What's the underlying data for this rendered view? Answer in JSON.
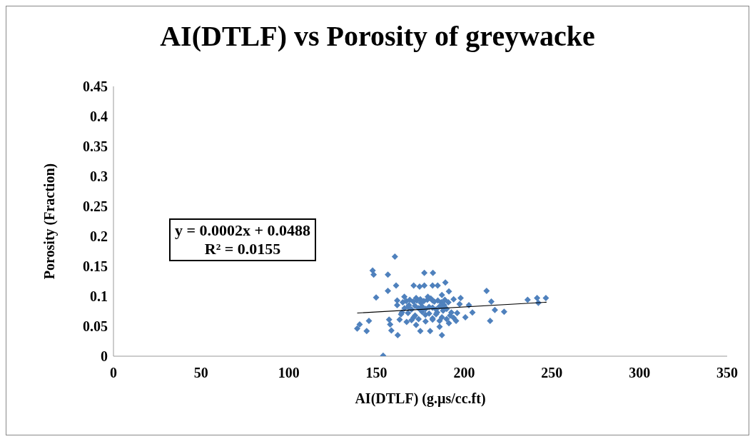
{
  "chart_data": {
    "type": "scatter",
    "title": "AI(DTLF) vs Porosity of greywacke",
    "xlabel": "AI(DTLF) (g.µs/cc.ft)",
    "ylabel": "Porosity (Fraction)",
    "xlim": [
      0,
      350
    ],
    "xticks": [
      0,
      50,
      100,
      150,
      200,
      250,
      300,
      350
    ],
    "ylim": [
      0,
      0.45
    ],
    "yticks": [
      0,
      0.05,
      0.1,
      0.15,
      0.2,
      0.25,
      0.3,
      0.35,
      0.4,
      0.45
    ],
    "grid": false,
    "legend": false,
    "marker": "diamond",
    "annotations": [
      "y = 0.0002x + 0.0488",
      "R² = 0.0155"
    ],
    "series": [
      {
        "color": "#4f81bd",
        "x": [
          160.5,
          147.8,
          148.4,
          156.5,
          177.3,
          182.2,
          189.3,
          171.2,
          174.6,
          177.3,
          161.2,
          156.5,
          182,
          184.9,
          212.8,
          149.8,
          198,
          215.5,
          236.2,
          241.6,
          242.3,
          246.6,
          217.5,
          222.8,
          214.8,
          145.7,
          140.4,
          139,
          144.4,
          158.5,
          162.1,
          175,
          180.6,
          187.3,
          153.8,
          161.8,
          165.9,
          172.6,
          179.3,
          187.3,
          191.3,
          194,
          197.4,
          202.7,
          204.7,
          200.7,
          195.4,
          191.3,
          186,
          172.6,
          167.2,
          163.2,
          157.2,
          157.8,
          164.5,
          168.5,
          175.3,
          182,
          188.6,
          184.6,
          177.9,
          171.2,
          192.7,
          175.3,
          182,
          187.3,
          161.8,
          165,
          167,
          169,
          171,
          173,
          175,
          177,
          179,
          181,
          183,
          185,
          187,
          189,
          191,
          166,
          168,
          170,
          172,
          174,
          176,
          178,
          180,
          182,
          184,
          186,
          188,
          190,
          164,
          168,
          172,
          176,
          180,
          184,
          188,
          192,
          196,
          170,
          174,
          178,
          182,
          186,
          190,
          194
        ],
        "values": [
          0.166,
          0.143,
          0.136,
          0.136,
          0.139,
          0.139,
          0.123,
          0.118,
          0.116,
          0.118,
          0.118,
          0.109,
          0.118,
          0.118,
          0.109,
          0.098,
          0.097,
          0.091,
          0.094,
          0.097,
          0.089,
          0.097,
          0.077,
          0.074,
          0.059,
          0.059,
          0.053,
          0.046,
          0.042,
          0.043,
          0.035,
          0.042,
          0.042,
          0.035,
          0.001,
          0.093,
          0.099,
          0.097,
          0.099,
          0.102,
          0.108,
          0.095,
          0.087,
          0.085,
          0.073,
          0.065,
          0.059,
          0.055,
          0.049,
          0.052,
          0.057,
          0.061,
          0.061,
          0.053,
          0.073,
          0.085,
          0.089,
          0.093,
          0.085,
          0.073,
          0.069,
          0.065,
          0.073,
          0.077,
          0.061,
          0.065,
          0.085,
          0.09,
          0.092,
          0.094,
          0.091,
          0.093,
          0.095,
          0.092,
          0.094,
          0.096,
          0.091,
          0.093,
          0.09,
          0.094,
          0.09,
          0.08,
          0.082,
          0.078,
          0.084,
          0.08,
          0.083,
          0.079,
          0.082,
          0.081,
          0.078,
          0.083,
          0.08,
          0.079,
          0.07,
          0.072,
          0.068,
          0.074,
          0.071,
          0.07,
          0.076,
          0.068,
          0.072,
          0.06,
          0.062,
          0.058,
          0.063,
          0.059,
          0.062,
          0.064
        ]
      },
      {
        "type": "line",
        "color": "#000000",
        "marker": "none",
        "x": [
          139,
          247
        ],
        "values": [
          0.072,
          0.09
        ]
      }
    ]
  }
}
